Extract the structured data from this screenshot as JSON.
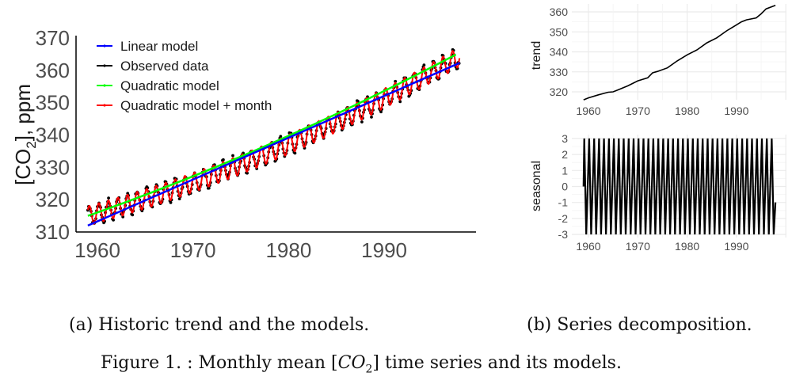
{
  "chart_data": [
    {
      "type": "line",
      "panel": "a",
      "ylabel": "[CO2], ppm",
      "xlabel": "",
      "xlim": [
        1959,
        1998
      ],
      "ylim": [
        310,
        370
      ],
      "x_ticks": [
        "1960",
        "1970",
        "1980",
        "1990"
      ],
      "y_ticks": [
        "310",
        "320",
        "330",
        "340",
        "350",
        "360",
        "370"
      ],
      "grid": false,
      "legend_position": "top-left",
      "series": [
        {
          "name": "Linear model",
          "color": "#0000ff",
          "kind": "line",
          "start": [
            1959.0,
            312.0
          ],
          "end": [
            1997.9,
            362.3
          ]
        },
        {
          "name": "Observed data",
          "color": "#000000",
          "kind": "points",
          "base_at_1959": 315.0,
          "growth_linear": 0.8,
          "growth_quadratic": 0.012,
          "seasonal_amplitude": 3.0
        },
        {
          "name": "Quadratic model",
          "color": "#00ff00",
          "kind": "line",
          "start": [
            1959.0,
            315.0
          ],
          "end": [
            1997.9,
            365.5
          ]
        },
        {
          "name": "Quadratic model + month",
          "color": "#ff0000",
          "kind": "line",
          "base_at_1959": 315.0,
          "growth_linear": 0.8,
          "growth_quadratic": 0.012,
          "seasonal_amplitude": 3.0
        }
      ]
    },
    {
      "type": "line",
      "panel": "b-trend",
      "ylabel": "trend",
      "xlim": [
        1959,
        1998
      ],
      "ylim": [
        316,
        364
      ],
      "x_ticks": [
        "1960",
        "1970",
        "1980",
        "1990"
      ],
      "y_ticks": [
        "320",
        "330",
        "340",
        "350",
        "360"
      ],
      "grid": true,
      "series": [
        {
          "name": "trend",
          "color": "#000000",
          "x": [
            1959.0,
            1960,
            1962,
            1964,
            1965,
            1966,
            1968,
            1970,
            1972,
            1973,
            1974,
            1976,
            1978,
            1980,
            1982,
            1984,
            1986,
            1988,
            1989,
            1990,
            1991,
            1992,
            1994,
            1995,
            1996,
            1997.9
          ],
          "y": [
            316.0,
            317.0,
            318.5,
            319.8,
            320.0,
            321.0,
            323.0,
            325.5,
            327.0,
            329.5,
            330.2,
            332.0,
            335.5,
            338.5,
            341.0,
            344.5,
            347.0,
            350.5,
            352.0,
            353.5,
            355.0,
            356.0,
            357.0,
            359.0,
            361.5,
            363.3
          ]
        }
      ]
    },
    {
      "type": "line",
      "panel": "b-seasonal",
      "ylabel": "seasonal",
      "xlim": [
        1959,
        1998
      ],
      "ylim": [
        -3,
        3
      ],
      "x_ticks": [
        "1960",
        "1970",
        "1980",
        "1990"
      ],
      "y_ticks": [
        "3",
        "2",
        "1",
        "0",
        "-1",
        "-2",
        "-3"
      ],
      "grid": true,
      "series": [
        {
          "name": "seasonal",
          "color": "#000000",
          "period_years": 1,
          "amplitude": 3,
          "start": [
            1959.0,
            0
          ],
          "end": [
            1997.9,
            -1
          ]
        }
      ]
    }
  ],
  "legend": [
    "Linear model",
    "Observed data",
    "Quadratic model",
    "Quadratic model + month"
  ],
  "captions": {
    "a": "(a) Historic trend and the models.",
    "b": "(b) Series decomposition.",
    "figure_prefix": "Figure 1. : Monthly mean [",
    "figure_var": "CO",
    "figure_sub": "2",
    "figure_suffix": "] time series and its models."
  }
}
